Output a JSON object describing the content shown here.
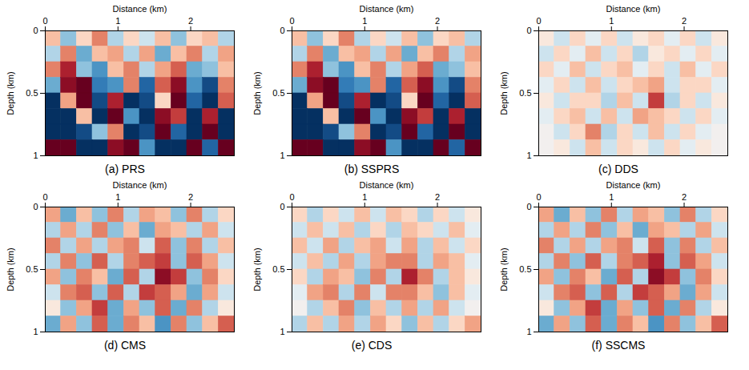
{
  "chart_data": [
    {
      "type": "heatmap",
      "title": "(a) PRS",
      "xlabel": "Distance (km)",
      "ylabel": "Depth (km)",
      "xlim": [
        0,
        2.6
      ],
      "ylim": [
        0,
        1
      ],
      "xticks": [
        0,
        1,
        2
      ],
      "yticks": [
        0,
        0.5,
        1
      ],
      "zlim": [
        -1,
        1
      ],
      "cells": [
        [
          0.3,
          -0.4,
          0.2,
          0.5,
          -0.3,
          0.2,
          -0.2,
          0.3,
          -0.4,
          0.2,
          0.3,
          -0.3
        ],
        [
          -0.3,
          0.5,
          -0.5,
          0.3,
          0.4,
          -0.3,
          0.4,
          -0.5,
          0.3,
          0.5,
          -0.3,
          0.4
        ],
        [
          0.5,
          0.8,
          -0.4,
          -0.6,
          0.3,
          0.5,
          -0.3,
          0.4,
          0.6,
          -0.5,
          -0.4,
          0.3
        ],
        [
          -0.5,
          0.9,
          1,
          -0.7,
          -0.6,
          0.5,
          -0.8,
          0.6,
          0.9,
          -0.6,
          -0.9,
          0.5
        ],
        [
          -1,
          0.4,
          1,
          -0.9,
          0.8,
          -1,
          -0.9,
          0.2,
          1,
          -0.8,
          -1,
          0.6
        ],
        [
          -1,
          -1,
          0.3,
          -1,
          1,
          -0.6,
          -1,
          0.9,
          0.7,
          -1,
          0.8,
          -1
        ],
        [
          -1,
          -1,
          -0.9,
          -0.4,
          0.5,
          -1,
          -0.9,
          1,
          -0.8,
          -1,
          1,
          -1
        ],
        [
          1,
          1,
          -1,
          -1,
          0.9,
          1,
          -0.6,
          -1,
          -1,
          1,
          -0.8,
          1
        ]
      ]
    },
    {
      "type": "heatmap",
      "title": "(b) SSPRS",
      "xlabel": "Distance (km)",
      "ylabel": "Depth (km)",
      "xlim": [
        0,
        2.6
      ],
      "ylim": [
        0,
        1
      ],
      "xticks": [
        0,
        1,
        2
      ],
      "yticks": [
        0,
        0.5,
        1
      ],
      "zlim": [
        -1,
        1
      ],
      "cells": [
        [
          0.3,
          -0.4,
          0.2,
          0.5,
          -0.3,
          0.2,
          -0.2,
          0.3,
          -0.4,
          0.2,
          0.3,
          -0.3
        ],
        [
          -0.3,
          0.5,
          -0.5,
          0.3,
          0.4,
          -0.3,
          0.4,
          -0.5,
          0.3,
          0.5,
          -0.3,
          0.4
        ],
        [
          0.5,
          0.8,
          -0.4,
          -0.6,
          0.3,
          0.5,
          -0.3,
          0.4,
          0.6,
          -0.5,
          -0.4,
          0.3
        ],
        [
          -0.5,
          0.9,
          1,
          -0.7,
          -0.6,
          0.5,
          -0.8,
          0.6,
          0.9,
          -0.6,
          -0.9,
          0.5
        ],
        [
          -1,
          0.4,
          1,
          -0.9,
          0.8,
          -1,
          -0.9,
          0.2,
          1,
          -0.8,
          -1,
          0.6
        ],
        [
          -1,
          -1,
          0.3,
          -1,
          1,
          -0.6,
          -1,
          0.9,
          0.7,
          -1,
          0.8,
          -1
        ],
        [
          -1,
          -1,
          -0.9,
          -0.4,
          0.5,
          -1,
          -0.9,
          1,
          -0.8,
          -1,
          1,
          -1
        ],
        [
          1,
          1,
          -1,
          -1,
          0.9,
          1,
          -0.6,
          -1,
          -1,
          1,
          -0.8,
          1
        ]
      ]
    },
    {
      "type": "heatmap",
      "title": "(c) DDS",
      "xlabel": "Distance (km)",
      "ylabel": "Depth (km)",
      "xlim": [
        0,
        2.6
      ],
      "ylim": [
        0,
        1
      ],
      "xticks": [
        0,
        1,
        2
      ],
      "yticks": [
        0,
        0.5,
        1
      ],
      "zlim": [
        -1,
        1
      ],
      "cells": [
        [
          0.1,
          -0.2,
          0.2,
          -0.1,
          0.2,
          -0.2,
          0.1,
          0.2,
          -0.1,
          0.2,
          -0.2,
          0.1
        ],
        [
          -0.2,
          0.2,
          -0.1,
          0.3,
          -0.2,
          0.2,
          -0.3,
          0.1,
          0.2,
          -0.1,
          0.2,
          -0.1
        ],
        [
          0.2,
          -0.1,
          0.3,
          -0.2,
          0.2,
          0.3,
          -0.1,
          0.2,
          -0.2,
          0.3,
          -0.1,
          0.2
        ],
        [
          -0.1,
          0.2,
          -0.2,
          0.3,
          -0.2,
          0.2,
          0.3,
          0.4,
          -0.2,
          0.2,
          0.2,
          -0.1
        ],
        [
          0.1,
          -0.2,
          0.2,
          0.2,
          -0.3,
          0.3,
          -0.2,
          0.7,
          -0.3,
          0.2,
          -0.2,
          0.1
        ],
        [
          -0.1,
          0.2,
          0.3,
          -0.2,
          0.3,
          -0.2,
          0.4,
          0.3,
          0.2,
          -0.2,
          0.2,
          -0.1
        ],
        [
          0,
          -0.2,
          0.2,
          0.5,
          -0.3,
          0.2,
          -0.2,
          0.3,
          -0.2,
          0.2,
          -0.1,
          0
        ],
        [
          0,
          0.1,
          -0.2,
          0.3,
          -0.2,
          0.2,
          0.1,
          -0.2,
          0.2,
          -0.1,
          0.1,
          0
        ]
      ]
    },
    {
      "type": "heatmap",
      "title": "(d) CMS",
      "xlabel": "Distance (km)",
      "ylabel": "Depth (km)",
      "xlim": [
        0,
        2.6
      ],
      "ylim": [
        0,
        1
      ],
      "xticks": [
        0,
        1,
        2
      ],
      "yticks": [
        0,
        0.5,
        1
      ],
      "zlim": [
        -1,
        1
      ],
      "cells": [
        [
          0.4,
          -0.5,
          0.3,
          -0.4,
          0.5,
          -0.3,
          0.4,
          0.3,
          -0.4,
          0.5,
          -0.3,
          0.2
        ],
        [
          -0.3,
          0.4,
          -0.3,
          0.5,
          -0.4,
          0.3,
          -0.5,
          0.4,
          0.3,
          -0.3,
          0.4,
          -0.2
        ],
        [
          0.5,
          -0.3,
          0.4,
          -0.3,
          0.4,
          0.5,
          -0.2,
          0.6,
          -0.4,
          0.5,
          -0.3,
          0.3
        ],
        [
          -0.3,
          0.5,
          -0.4,
          0.6,
          -0.3,
          0.5,
          0.6,
          0.7,
          -0.4,
          0.6,
          0.4,
          -0.2
        ],
        [
          0.4,
          -0.4,
          0.5,
          0.3,
          -0.5,
          0.6,
          -0.3,
          0.9,
          0.7,
          -0.4,
          0.5,
          0.2
        ],
        [
          -0.2,
          0.5,
          0.6,
          -0.4,
          0.6,
          -0.3,
          0.7,
          0.6,
          0.4,
          -0.5,
          0.4,
          -0.2
        ],
        [
          0.1,
          -0.4,
          0.4,
          0.7,
          -0.5,
          0.4,
          -0.4,
          0.6,
          -0.5,
          0.5,
          -0.3,
          0.1
        ],
        [
          -0.5,
          0.4,
          -0.4,
          0.6,
          -0.5,
          0.5,
          0.3,
          -0.6,
          0.5,
          -0.4,
          0.3,
          0.6
        ]
      ]
    },
    {
      "type": "heatmap",
      "title": "(e) CDS",
      "xlabel": "Distance (km)",
      "ylabel": "Depth (km)",
      "xlim": [
        0,
        2.6
      ],
      "ylim": [
        0,
        1
      ],
      "xticks": [
        0,
        1,
        2
      ],
      "yticks": [
        0,
        0.5,
        1
      ],
      "zlim": [
        -1,
        1
      ],
      "cells": [
        [
          0.2,
          -0.3,
          0.2,
          -0.2,
          0.3,
          -0.2,
          0.3,
          0.2,
          -0.3,
          0.2,
          -0.2,
          0.1
        ],
        [
          -0.2,
          0.3,
          -0.2,
          0.3,
          -0.3,
          0.2,
          -0.3,
          0.3,
          0.2,
          -0.2,
          0.3,
          -0.1
        ],
        [
          0.3,
          -0.2,
          0.4,
          -0.3,
          0.3,
          0.4,
          -0.2,
          0.4,
          -0.3,
          0.3,
          -0.2,
          0.2
        ],
        [
          -0.2,
          0.3,
          -0.3,
          0.4,
          -0.3,
          0.4,
          0.5,
          0.5,
          -0.3,
          0.4,
          0.3,
          -0.1
        ],
        [
          0.2,
          -0.3,
          0.4,
          0.3,
          -0.4,
          0.5,
          -0.3,
          0.8,
          0.5,
          -0.3,
          0.3,
          0.1
        ],
        [
          -0.1,
          0.4,
          0.5,
          -0.3,
          0.5,
          -0.2,
          0.5,
          0.5,
          0.3,
          -0.4,
          0.3,
          -0.1
        ],
        [
          0,
          -0.3,
          0.3,
          0.5,
          -0.4,
          0.3,
          -0.3,
          0.4,
          -0.3,
          0.4,
          -0.2,
          0
        ],
        [
          -0.3,
          0.3,
          -0.3,
          0.4,
          -0.3,
          0.4,
          0.2,
          -0.4,
          0.3,
          -0.3,
          0.2,
          0.4
        ]
      ]
    },
    {
      "type": "heatmap",
      "title": "(f) SSCMS",
      "xlabel": "Distance (km)",
      "ylabel": "Depth (km)",
      "xlim": [
        0,
        2.6
      ],
      "ylim": [
        0,
        1
      ],
      "xticks": [
        0,
        1,
        2
      ],
      "yticks": [
        0,
        0.5,
        1
      ],
      "zlim": [
        -1,
        1
      ],
      "cells": [
        [
          0.4,
          -0.5,
          0.3,
          -0.4,
          0.5,
          -0.3,
          0.4,
          0.3,
          -0.4,
          0.5,
          -0.3,
          0.2
        ],
        [
          -0.3,
          0.4,
          -0.3,
          0.5,
          -0.4,
          0.3,
          -0.5,
          0.4,
          0.3,
          -0.3,
          0.4,
          -0.2
        ],
        [
          0.5,
          -0.3,
          0.4,
          -0.3,
          0.4,
          0.5,
          -0.2,
          0.6,
          -0.4,
          0.5,
          -0.3,
          0.3
        ],
        [
          -0.3,
          0.5,
          -0.4,
          0.6,
          -0.3,
          0.5,
          0.6,
          0.8,
          -0.4,
          0.6,
          0.4,
          -0.2
        ],
        [
          0.4,
          -0.4,
          0.5,
          0.3,
          -0.5,
          0.6,
          -0.3,
          0.9,
          0.7,
          -0.4,
          0.5,
          0.2
        ],
        [
          -0.2,
          0.5,
          0.6,
          -0.4,
          0.6,
          -0.3,
          0.7,
          0.6,
          0.4,
          -0.5,
          0.4,
          -0.2
        ],
        [
          0.1,
          -0.4,
          0.4,
          0.7,
          -0.5,
          0.4,
          -0.4,
          0.6,
          -0.5,
          0.5,
          -0.3,
          0.1
        ],
        [
          -0.5,
          0.4,
          -0.4,
          0.6,
          -0.5,
          0.5,
          0.3,
          -0.6,
          0.5,
          -0.4,
          0.3,
          0.6
        ]
      ]
    }
  ]
}
